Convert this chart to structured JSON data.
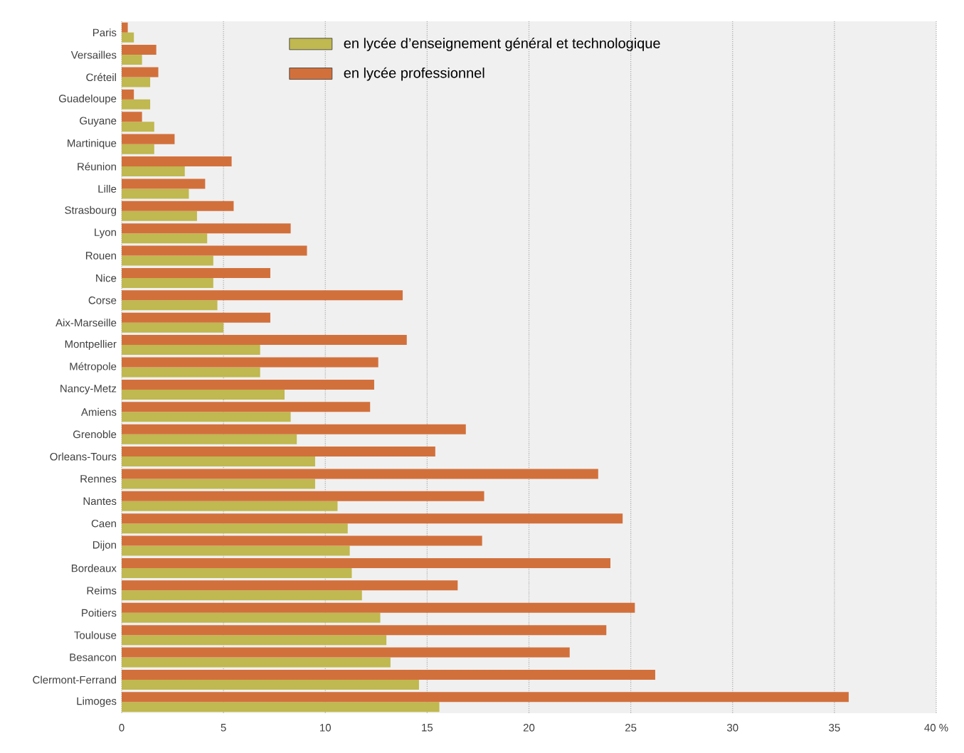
{
  "chart_data": {
    "type": "bar",
    "orientation": "horizontal",
    "categories": [
      "Paris",
      "Versailles",
      "Créteil",
      "Guadeloupe",
      "Guyane",
      "Martinique",
      "Réunion",
      "Lille",
      "Strasbourg",
      "Lyon",
      "Rouen",
      "Nice",
      "Corse",
      "Aix-Marseille",
      "Montpellier",
      "Métropole",
      "Nancy-Metz",
      "Amiens",
      "Grenoble",
      "Orleans-Tours",
      "Rennes",
      "Nantes",
      "Caen",
      "Dijon",
      "Bordeaux",
      "Reims",
      "Poitiers",
      "Toulouse",
      "Besancon",
      "Clermont-Ferrand",
      "Limoges"
    ],
    "series": [
      {
        "name": "en lycée d’enseignement général et technologique",
        "color": "#c0b850",
        "values": [
          0.6,
          1.0,
          1.4,
          1.4,
          1.6,
          1.6,
          3.1,
          3.3,
          3.7,
          4.2,
          4.5,
          4.5,
          4.7,
          5.0,
          6.8,
          6.8,
          8.0,
          8.3,
          8.6,
          9.5,
          9.5,
          10.6,
          11.1,
          11.2,
          11.3,
          11.8,
          12.7,
          13.0,
          13.2,
          14.6,
          15.6
        ]
      },
      {
        "name": "en lycée professionnel",
        "color": "#d2703c",
        "values": [
          0.3,
          1.7,
          1.8,
          0.6,
          1.0,
          2.6,
          5.4,
          4.1,
          5.5,
          8.3,
          9.1,
          7.3,
          13.8,
          7.3,
          14.0,
          12.6,
          12.4,
          12.2,
          16.9,
          15.4,
          23.4,
          17.8,
          24.6,
          17.7,
          24.0,
          16.5,
          25.2,
          23.8,
          22.0,
          26.2,
          35.7
        ]
      }
    ],
    "xlim": [
      0,
      40
    ],
    "xticks": [
      0,
      5,
      10,
      15,
      20,
      25,
      30,
      35,
      {
        "value": 40,
        "label": "40 %"
      }
    ],
    "grid": "x",
    "legend": "top"
  }
}
